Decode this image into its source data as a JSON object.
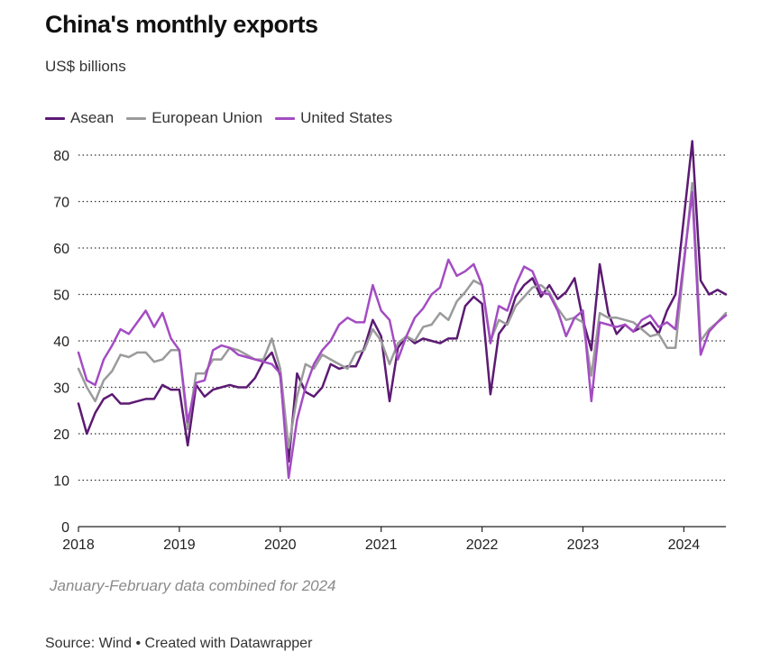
{
  "header": {
    "title": "China's monthly exports",
    "subtitle": "US$ billions"
  },
  "footer": {
    "note": "January-February data combined for 2024",
    "source": "Source: Wind • Created with Datawrapper"
  },
  "chart_data": {
    "type": "line",
    "title": "China's monthly exports",
    "subtitle": "US$ billions",
    "xlabel": "",
    "ylabel": "",
    "ylim": [
      0,
      80
    ],
    "xlim": [
      "2018-01",
      "2024-06"
    ],
    "y_ticks": [
      "0",
      "10",
      "20",
      "30",
      "40",
      "50",
      "60",
      "70",
      "80"
    ],
    "x_ticks": [
      "2018",
      "2019",
      "2020",
      "2021",
      "2022",
      "2023",
      "2024"
    ],
    "grid": "horizontal dotted",
    "legend_position": "top-left",
    "x": [
      "2018-01",
      "2018-02",
      "2018-03",
      "2018-04",
      "2018-05",
      "2018-06",
      "2018-07",
      "2018-08",
      "2018-09",
      "2018-10",
      "2018-11",
      "2018-12",
      "2019-01",
      "2019-02",
      "2019-03",
      "2019-04",
      "2019-05",
      "2019-06",
      "2019-07",
      "2019-08",
      "2019-09",
      "2019-10",
      "2019-11",
      "2019-12",
      "2020-01",
      "2020-02",
      "2020-03",
      "2020-04",
      "2020-05",
      "2020-06",
      "2020-07",
      "2020-08",
      "2020-09",
      "2020-10",
      "2020-11",
      "2020-12",
      "2021-01",
      "2021-02",
      "2021-03",
      "2021-04",
      "2021-05",
      "2021-06",
      "2021-07",
      "2021-08",
      "2021-09",
      "2021-10",
      "2021-11",
      "2021-12",
      "2022-01",
      "2022-02",
      "2022-03",
      "2022-04",
      "2022-05",
      "2022-06",
      "2022-07",
      "2022-08",
      "2022-09",
      "2022-10",
      "2022-11",
      "2022-12",
      "2023-01",
      "2023-02",
      "2023-03",
      "2023-04",
      "2023-05",
      "2023-06",
      "2023-07",
      "2023-08",
      "2023-09",
      "2023-10",
      "2023-11",
      "2023-12",
      "2024-02",
      "2024-03",
      "2024-04",
      "2024-05",
      "2024-06"
    ],
    "series": [
      {
        "name": "Asean",
        "color": "#5c1a73",
        "values": [
          26.5,
          20,
          24.5,
          27.5,
          28.5,
          26.5,
          26.5,
          27,
          27.5,
          27.5,
          30.5,
          29.5,
          29.5,
          17.5,
          30.5,
          28,
          29.5,
          30,
          30.5,
          30,
          30,
          32,
          35.5,
          37.5,
          32.5,
          14,
          33,
          29,
          28,
          30,
          35,
          34,
          34.5,
          34.5,
          38.5,
          44.5,
          41,
          27,
          38.5,
          41,
          39.5,
          40.5,
          40,
          39.5,
          40.5,
          40.5,
          47.5,
          49.5,
          48,
          28.5,
          41.5,
          44,
          49.5,
          52,
          53.5,
          49.5,
          52,
          49,
          50.5,
          53.5,
          44.5,
          38,
          56.5,
          46,
          41.5,
          43.5,
          42,
          43,
          44,
          41.5,
          46.5,
          50,
          83,
          53,
          50,
          51,
          50
        ]
      },
      {
        "name": "European Union",
        "color": "#9b9b9b",
        "values": [
          34,
          30,
          27,
          31.5,
          33.5,
          37,
          36.5,
          37.5,
          37.5,
          35.5,
          36,
          38,
          38,
          21,
          33,
          33,
          36,
          36,
          38.5,
          38,
          37,
          36,
          36,
          40.5,
          34,
          17,
          28,
          35,
          34,
          37,
          36,
          35,
          34,
          37.5,
          38,
          42.5,
          40,
          35,
          39.5,
          41,
          40,
          43,
          43.5,
          46,
          44.5,
          48.5,
          50.5,
          53,
          52,
          40,
          44.5,
          43.5,
          47.5,
          49.5,
          51.5,
          52,
          50.5,
          47,
          44.5,
          45,
          44,
          32.5,
          46,
          45,
          45,
          44.5,
          44,
          42.5,
          41,
          41.5,
          38.5,
          38.5,
          74,
          40,
          42.5,
          44,
          46
        ]
      },
      {
        "name": "United States",
        "color": "#a34cc2",
        "values": [
          37.5,
          31.5,
          30.5,
          36,
          39,
          42.5,
          41.5,
          44,
          46.5,
          43,
          46,
          40.5,
          38,
          22.5,
          31,
          31.5,
          38,
          39,
          38.5,
          37,
          36.5,
          36,
          35.5,
          35,
          33,
          10.5,
          23,
          30,
          35,
          38,
          40,
          43.5,
          45,
          44,
          44,
          52,
          46.5,
          44.5,
          36,
          41,
          45,
          47,
          50,
          51.5,
          57.5,
          54,
          55,
          56.5,
          52,
          39.5,
          47.5,
          46.5,
          52,
          56,
          55,
          50.5,
          50,
          46.5,
          41,
          45,
          46.5,
          27,
          44,
          43.5,
          43,
          43.5,
          42,
          44.5,
          45.5,
          43,
          44,
          42.5,
          72,
          37,
          42,
          44,
          45.5
        ]
      }
    ]
  }
}
